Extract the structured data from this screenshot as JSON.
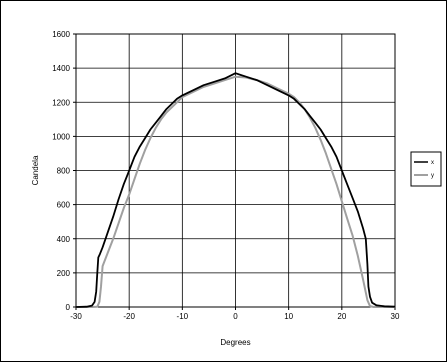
{
  "chart_data": {
    "type": "line",
    "title": "",
    "xlabel": "Degrees",
    "ylabel": "Candela",
    "xlim": [
      -30,
      30
    ],
    "ylim": [
      0,
      1600
    ],
    "x_ticks": [
      -30,
      -20,
      -10,
      0,
      10,
      20,
      30
    ],
    "y_ticks": [
      0,
      200,
      400,
      600,
      800,
      1000,
      1200,
      1400,
      1600
    ],
    "x_tick_labels": [
      "-30",
      "-20",
      "-10",
      "0",
      "10",
      "20",
      "30"
    ],
    "y_tick_labels": [
      "0",
      "200",
      "400",
      "600",
      "800",
      "1000",
      "1200",
      "1400",
      "1600"
    ],
    "grid": true,
    "legend_position": "right",
    "series": [
      {
        "name": "x",
        "color": "#000000",
        "points": [
          [
            -30,
            0
          ],
          [
            -28,
            2
          ],
          [
            -27,
            8
          ],
          [
            -26.5,
            30
          ],
          [
            -26.2,
            90
          ],
          [
            -26,
            200
          ],
          [
            -25.8,
            290
          ],
          [
            -25.5,
            310
          ],
          [
            -25,
            350
          ],
          [
            -24,
            440
          ],
          [
            -23,
            530
          ],
          [
            -22,
            630
          ],
          [
            -21,
            720
          ],
          [
            -20,
            800
          ],
          [
            -19,
            880
          ],
          [
            -18,
            940
          ],
          [
            -17,
            990
          ],
          [
            -16,
            1040
          ],
          [
            -15,
            1080
          ],
          [
            -14,
            1120
          ],
          [
            -13,
            1160
          ],
          [
            -12,
            1190
          ],
          [
            -11,
            1220
          ],
          [
            -10,
            1240
          ],
          [
            -8,
            1270
          ],
          [
            -6,
            1300
          ],
          [
            -4,
            1320
          ],
          [
            -2,
            1340
          ],
          [
            -1,
            1355
          ],
          [
            0,
            1370
          ],
          [
            1,
            1360
          ],
          [
            2,
            1350
          ],
          [
            4,
            1330
          ],
          [
            6,
            1300
          ],
          [
            8,
            1270
          ],
          [
            10,
            1240
          ],
          [
            11,
            1220
          ],
          [
            12,
            1190
          ],
          [
            13,
            1160
          ],
          [
            14,
            1120
          ],
          [
            15,
            1080
          ],
          [
            16,
            1040
          ],
          [
            17,
            990
          ],
          [
            18,
            940
          ],
          [
            19,
            880
          ],
          [
            20,
            800
          ],
          [
            21,
            720
          ],
          [
            22,
            640
          ],
          [
            23,
            560
          ],
          [
            24,
            460
          ],
          [
            24.5,
            400
          ],
          [
            24.8,
            250
          ],
          [
            25,
            120
          ],
          [
            25.3,
            60
          ],
          [
            25.7,
            25
          ],
          [
            26.5,
            10
          ],
          [
            28,
            4
          ],
          [
            30,
            2
          ]
        ]
      },
      {
        "name": "y",
        "color": "#a0a0a0",
        "points": [
          [
            -30,
            0
          ],
          [
            -27,
            0
          ],
          [
            -26,
            2
          ],
          [
            -25.6,
            30
          ],
          [
            -25.3,
            120
          ],
          [
            -25,
            240
          ],
          [
            -24,
            320
          ],
          [
            -23,
            400
          ],
          [
            -22,
            490
          ],
          [
            -21,
            580
          ],
          [
            -20,
            660
          ],
          [
            -19,
            750
          ],
          [
            -18,
            840
          ],
          [
            -17,
            920
          ],
          [
            -16,
            990
          ],
          [
            -15,
            1050
          ],
          [
            -14,
            1100
          ],
          [
            -13,
            1140
          ],
          [
            -12,
            1170
          ],
          [
            -11,
            1200
          ],
          [
            -10,
            1230
          ],
          [
            -8,
            1260
          ],
          [
            -6,
            1290
          ],
          [
            -4,
            1310
          ],
          [
            -2,
            1330
          ],
          [
            0,
            1350
          ],
          [
            2,
            1345
          ],
          [
            4,
            1330
          ],
          [
            6,
            1310
          ],
          [
            8,
            1280
          ],
          [
            10,
            1250
          ],
          [
            11,
            1230
          ],
          [
            12,
            1200
          ],
          [
            13,
            1160
          ],
          [
            14,
            1110
          ],
          [
            15,
            1050
          ],
          [
            16,
            980
          ],
          [
            17,
            900
          ],
          [
            18,
            810
          ],
          [
            19,
            720
          ],
          [
            20,
            620
          ],
          [
            21,
            520
          ],
          [
            22,
            420
          ],
          [
            23,
            300
          ],
          [
            24,
            160
          ],
          [
            24.8,
            40
          ],
          [
            25.3,
            5
          ],
          [
            26,
            0
          ],
          [
            30,
            0
          ]
        ]
      }
    ]
  }
}
